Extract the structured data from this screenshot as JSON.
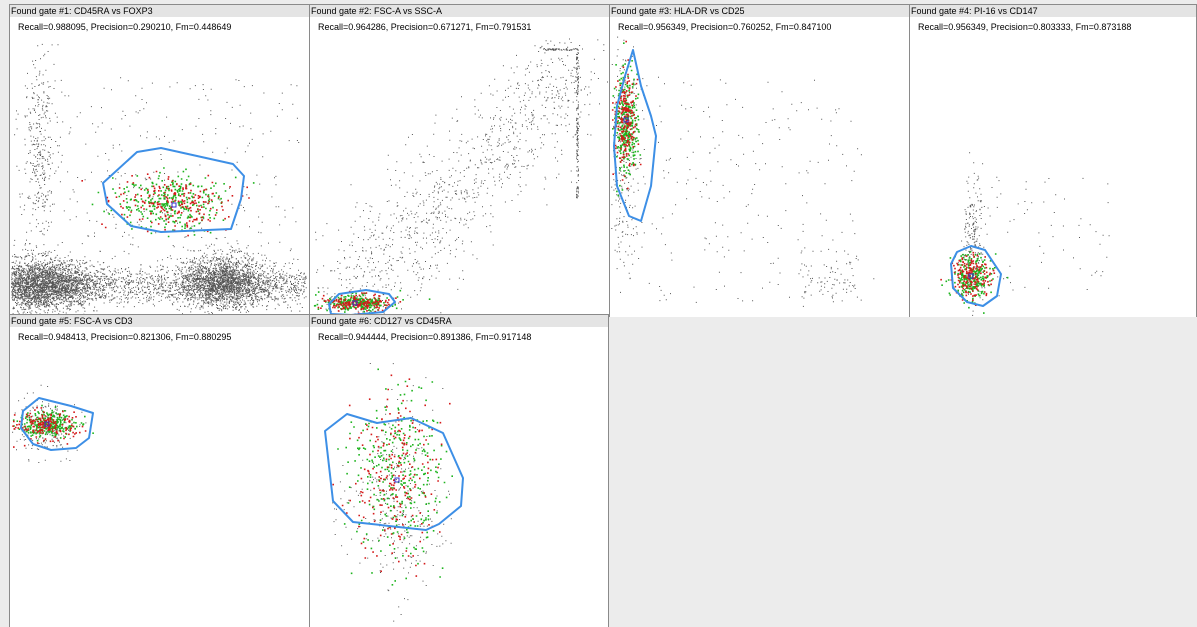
{
  "colors": {
    "gate_outline": "#3d8fe6",
    "background_events": "#555555",
    "true_positive_events": "#1fb41f",
    "false_positive_events": "#d41a1a",
    "gate_center": "#3333cc",
    "empty_area": "#ececec"
  },
  "panels": [
    {
      "title": "Found gate #1: CD45RA vs FOXP3",
      "metrics": "Recall=0.988095, Precision=0.290210, Fm=0.448649"
    },
    {
      "title": "Found gate #2: FSC-A vs SSC-A",
      "metrics": "Recall=0.964286, Precision=0.671271, Fm=0.791531"
    },
    {
      "title": "Found gate #3: HLA-DR vs CD25",
      "metrics": "Recall=0.956349, Precision=0.760252, Fm=0.847100"
    },
    {
      "title": "Found gate #4: PI-16 vs CD147",
      "metrics": "Recall=0.956349, Precision=0.803333, Fm=0.873188"
    },
    {
      "title": "Found gate #5: FSC-A vs CD3",
      "metrics": "Recall=0.948413, Precision=0.821306, Fm=0.880295"
    },
    {
      "title": "Found gate #6: CD127 vs CD45RA",
      "metrics": "Recall=0.944444, Precision=0.891386, Fm=0.917148"
    }
  ]
}
